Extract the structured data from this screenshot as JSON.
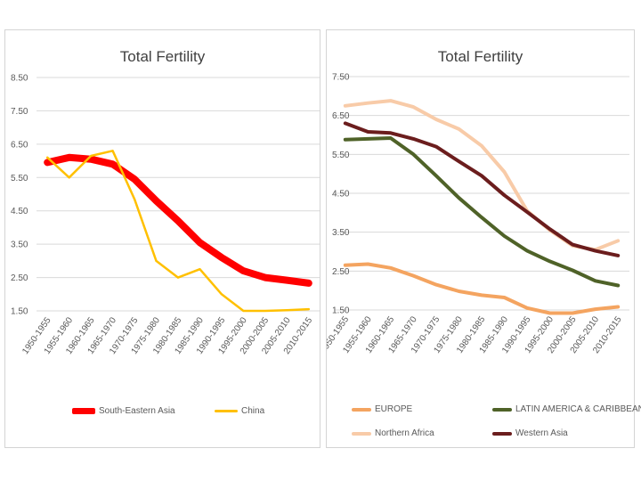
{
  "chart_data": [
    {
      "type": "line",
      "title": "Total Fertility",
      "categories": [
        "1950-1955",
        "1955-1960",
        "1960-1965",
        "1965-1970",
        "1970-1975",
        "1975-1980",
        "1980-1985",
        "1985-1990",
        "1990-1995",
        "1995-2000",
        "2000-2005",
        "2005-2010",
        "2010-2015"
      ],
      "yticks": [
        "8.50",
        "7.50",
        "6.50",
        "5.50",
        "4.50",
        "3.50",
        "2.50",
        "1.50"
      ],
      "ylim": [
        1.5,
        8.5
      ],
      "grid": true,
      "legend_position": "bottom",
      "series": [
        {
          "name": "South-Eastern Asia",
          "color": "#ff0000",
          "width": "thick",
          "values": [
            5.95,
            6.1,
            6.05,
            5.9,
            5.45,
            4.8,
            4.2,
            3.55,
            3.1,
            2.7,
            2.5,
            2.42,
            2.33
          ]
        },
        {
          "name": "China",
          "color": "#ffc000",
          "width": "thin",
          "values": [
            6.1,
            5.5,
            6.15,
            6.3,
            4.85,
            3.0,
            2.5,
            2.75,
            2.0,
            1.5,
            1.5,
            1.52,
            1.55
          ]
        }
      ]
    },
    {
      "type": "line",
      "title": "Total Fertility",
      "categories": [
        "1950-1955",
        "1955-1960",
        "1960-1965",
        "1965-1970",
        "1970-1975",
        "1975-1980",
        "1980-1985",
        "1985-1990",
        "1990-1995",
        "1995-2000",
        "2000-2005",
        "2005-2010",
        "2010-2015"
      ],
      "yticks": [
        "7.50",
        "6.50",
        "5.50",
        "4.50",
        "3.50",
        "2.50",
        "1.50"
      ],
      "ylim": [
        1.5,
        7.5
      ],
      "grid": true,
      "legend_position": "bottom",
      "series": [
        {
          "name": "EUROPE",
          "color": "#f4a460",
          "width": "medium",
          "values": [
            2.65,
            2.68,
            2.58,
            2.38,
            2.15,
            1.98,
            1.88,
            1.82,
            1.55,
            1.42,
            1.42,
            1.52,
            1.58
          ]
        },
        {
          "name": "LATIN AMERICA & CARIBBEAN",
          "color": "#4f6228",
          "width": "medium",
          "values": [
            5.88,
            5.9,
            5.92,
            5.5,
            4.95,
            4.38,
            3.88,
            3.4,
            3.02,
            2.75,
            2.52,
            2.25,
            2.13
          ]
        },
        {
          "name": "Northern Africa",
          "color": "#f8cba8",
          "width": "medium",
          "values": [
            6.75,
            6.82,
            6.88,
            6.72,
            6.4,
            6.15,
            5.72,
            5.05,
            4.05,
            3.55,
            3.15,
            3.05,
            3.28
          ]
        },
        {
          "name": "Western Asia",
          "color": "#6b1d1d",
          "width": "medium",
          "values": [
            6.3,
            6.08,
            6.05,
            5.9,
            5.7,
            5.32,
            4.95,
            4.45,
            4.02,
            3.58,
            3.18,
            3.02,
            2.9
          ]
        }
      ]
    }
  ]
}
